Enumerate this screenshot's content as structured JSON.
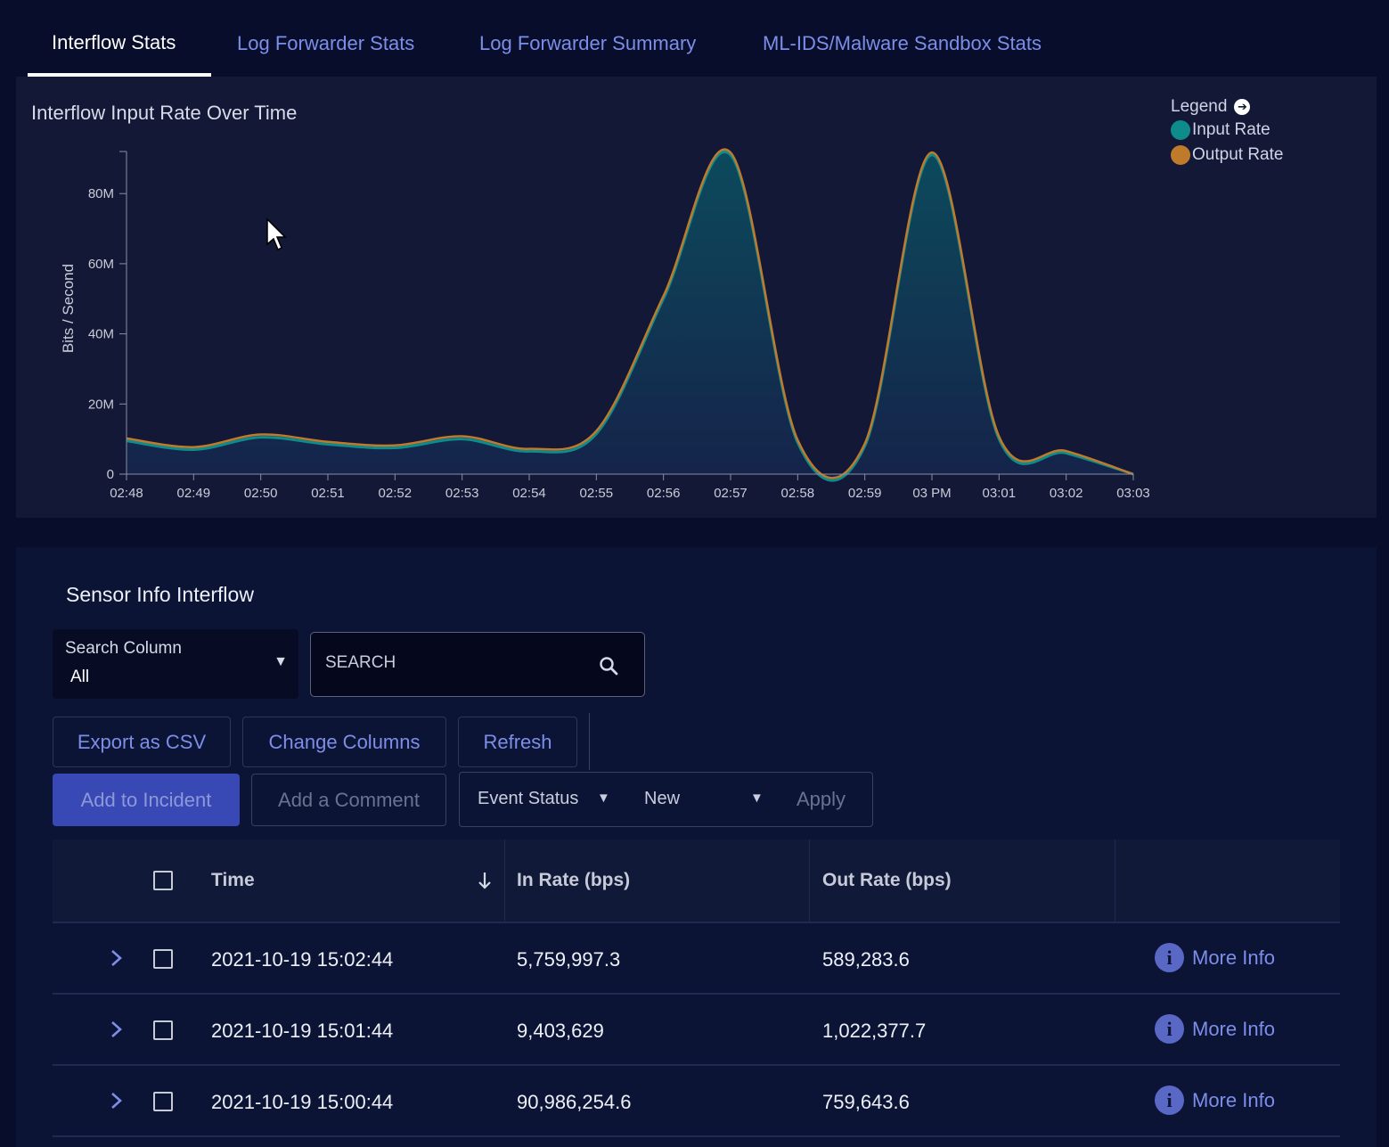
{
  "tabs": [
    {
      "label": "Interflow Stats",
      "active": true
    },
    {
      "label": "Log Forwarder Stats",
      "active": false
    },
    {
      "label": "Log Forwarder Summary",
      "active": false
    },
    {
      "label": "ML-IDS/Malware Sandbox Stats",
      "active": false
    }
  ],
  "chart_panel": {
    "title": "Interflow Input Rate Over Time",
    "legend_title": "Legend"
  },
  "chart_data": {
    "type": "area",
    "title": "Interflow Input Rate Over Time",
    "xlabel": "",
    "ylabel": "Bits / Second",
    "x": [
      "02:48",
      "02:49",
      "02:50",
      "02:51",
      "02:52",
      "02:53",
      "02:54",
      "02:55",
      "02:56",
      "02:57",
      "02:58",
      "02:59",
      "03 PM",
      "03:01",
      "03:02",
      "03:03"
    ],
    "ylim": [
      0,
      92000000
    ],
    "yticks": [
      {
        "value": 0,
        "label": "0"
      },
      {
        "value": 20000000,
        "label": "20M"
      },
      {
        "value": 40000000,
        "label": "40M"
      },
      {
        "value": 60000000,
        "label": "60M"
      },
      {
        "value": 80000000,
        "label": "80M"
      }
    ],
    "grid": false,
    "legend_position": "top-right",
    "series": [
      {
        "name": "Input Rate",
        "color": "#0e8c8c",
        "values": [
          9500000,
          7000000,
          10500000,
          8500000,
          7500000,
          10000000,
          6500000,
          11500000,
          50000000,
          91000000,
          9000000,
          8000000,
          91000000,
          10000000,
          6000000,
          0
        ]
      },
      {
        "name": "Output Rate",
        "color": "#c07a2c",
        "values": [
          10200000,
          7700000,
          11300000,
          9200000,
          8200000,
          10800000,
          7200000,
          12300000,
          50800000,
          91700000,
          9700000,
          8700000,
          91700000,
          10700000,
          6600000,
          0
        ]
      }
    ]
  },
  "table_panel": {
    "title": "Sensor Info Interflow",
    "search_column_label": "Search Column",
    "search_column_value": "All",
    "search_placeholder": "SEARCH",
    "buttons": {
      "export": "Export as CSV",
      "change_columns": "Change Columns",
      "refresh": "Refresh",
      "add_incident": "Add to Incident",
      "add_comment": "Add a Comment",
      "apply": "Apply"
    },
    "event_status_label": "Event Status",
    "event_status_value": "New",
    "columns": [
      "Time",
      "In Rate (bps)",
      "Out Rate (bps)"
    ],
    "more_info_label": "More Info",
    "rows": [
      {
        "time": "2021-10-19 15:02:44",
        "in_rate": "5,759,997.3",
        "out_rate": "589,283.6"
      },
      {
        "time": "2021-10-19 15:01:44",
        "in_rate": "9,403,629",
        "out_rate": "1,022,377.7"
      },
      {
        "time": "2021-10-19 15:00:44",
        "in_rate": "90,986,254.6",
        "out_rate": "759,643.6"
      }
    ]
  },
  "colors": {
    "background": "#070d2a",
    "panel": "#121836",
    "accent": "#7d8ee8",
    "primary_button": "#3848b4"
  }
}
